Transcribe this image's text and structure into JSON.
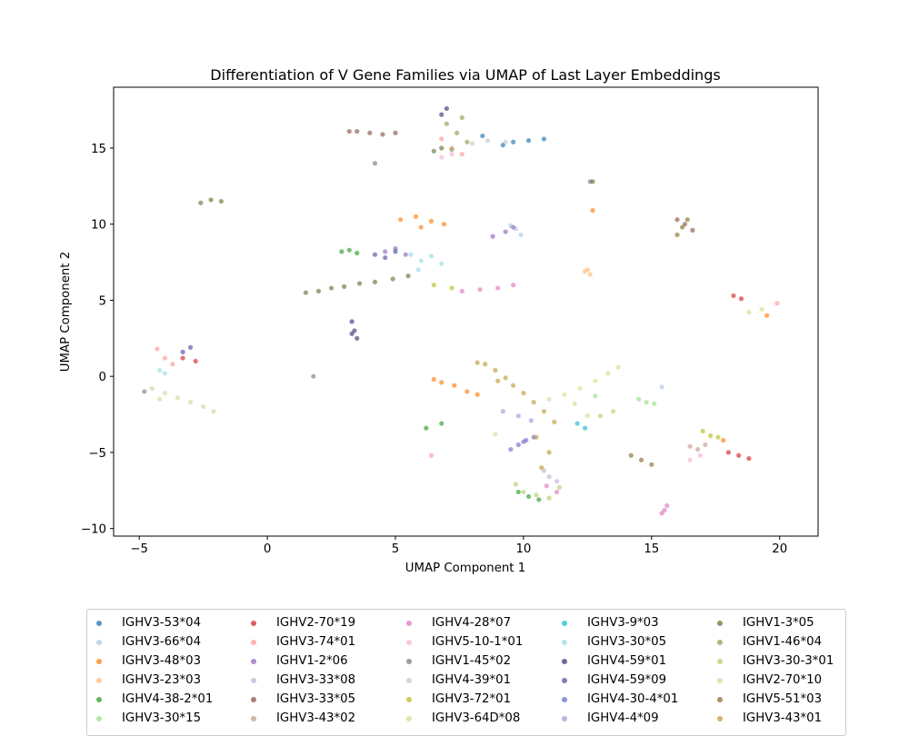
{
  "chart_data": {
    "type": "scatter",
    "title": "Differentiation of V Gene Families via UMAP of Last Layer Embeddings",
    "xlabel": "UMAP Component 1",
    "ylabel": "UMAP Component 2",
    "xlim": [
      -6.0,
      21.5
    ],
    "ylim": [
      -10.5,
      19.0
    ],
    "xticks": [
      -5,
      0,
      5,
      10,
      15,
      20
    ],
    "yticks": [
      -10,
      -5,
      0,
      5,
      10,
      15
    ],
    "grid": false,
    "legend_position": "bottom",
    "legend_columns": 5,
    "series": [
      {
        "name": "IGHV3-53*04",
        "color": "#1f77b4",
        "x": [
          9.6,
          10.2,
          10.8,
          9.2,
          8.4
        ],
        "y": [
          15.4,
          15.5,
          15.6,
          15.2,
          15.8
        ]
      },
      {
        "name": "IGHV3-66*04",
        "color": "#aec7e8",
        "x": [
          9.7,
          9.9,
          9.5,
          15.4
        ],
        "y": [
          9.7,
          9.3,
          9.9,
          -0.7
        ]
      },
      {
        "name": "IGHV3-48*03",
        "color": "#ff7f0e",
        "x": [
          5.2,
          5.8,
          6.4,
          6.9,
          6.0,
          6.8,
          7.3,
          7.8,
          6.5,
          8.2,
          19.5,
          12.7,
          17.8
        ],
        "y": [
          10.3,
          10.5,
          10.2,
          10.0,
          9.8,
          -0.4,
          -0.6,
          -1.0,
          -0.2,
          -1.2,
          4.0,
          10.9,
          -4.2
        ]
      },
      {
        "name": "IGHV3-23*03",
        "color": "#ffbb78",
        "x": [
          12.4,
          12.6,
          12.5
        ],
        "y": [
          6.9,
          6.7,
          7.0
        ]
      },
      {
        "name": "IGHV4-38-2*01",
        "color": "#2ca02c",
        "x": [
          2.9,
          3.2,
          3.5,
          6.2,
          6.8,
          10.2,
          10.6,
          9.8
        ],
        "y": [
          8.2,
          8.3,
          8.1,
          -3.4,
          -3.1,
          -7.9,
          -8.1,
          -7.6
        ]
      },
      {
        "name": "IGHV3-30*15",
        "color": "#98df8a",
        "x": [
          14.5,
          14.8,
          15.1,
          12.8
        ],
        "y": [
          -1.5,
          -1.7,
          -1.8,
          -1.3
        ]
      },
      {
        "name": "IGHV2-70*19",
        "color": "#d62728",
        "x": [
          18.0,
          18.4,
          18.8,
          18.2,
          18.5,
          -3.3,
          -2.8
        ],
        "y": [
          -5.0,
          -5.2,
          -5.4,
          5.3,
          5.1,
          1.2,
          1.0
        ]
      },
      {
        "name": "IGHV3-74*01",
        "color": "#ff9896",
        "x": [
          -4.3,
          -4.0,
          -3.7,
          7.2,
          6.8,
          7.6,
          6.4,
          19.9
        ],
        "y": [
          1.8,
          1.2,
          0.8,
          15.0,
          15.6,
          14.6,
          -5.2,
          4.8
        ]
      },
      {
        "name": "IGHV1-2*06",
        "color": "#9467bd",
        "x": [
          4.6,
          5.0,
          5.4,
          8.8,
          9.3,
          9.6,
          10.0
        ],
        "y": [
          8.2,
          8.4,
          8.0,
          9.2,
          9.5,
          9.8,
          -4.3
        ]
      },
      {
        "name": "IGHV3-33*08",
        "color": "#c5b0d5",
        "x": [
          10.8,
          11.0,
          11.3
        ],
        "y": [
          -6.2,
          -6.6,
          -6.9
        ]
      },
      {
        "name": "IGHV3-33*05",
        "color": "#8c564b",
        "x": [
          3.5,
          4.0,
          4.5,
          5.0,
          3.2,
          16.0,
          16.3,
          16.6
        ],
        "y": [
          16.1,
          16.0,
          15.9,
          16.0,
          16.1,
          10.3,
          10.0,
          9.6
        ]
      },
      {
        "name": "IGHV3-43*02",
        "color": "#c49c94",
        "x": [
          16.5,
          16.8,
          17.1
        ],
        "y": [
          -4.6,
          -4.8,
          -4.5
        ]
      },
      {
        "name": "IGHV4-28*07",
        "color": "#e377c2",
        "x": [
          7.6,
          8.3,
          9.0,
          9.6,
          15.5,
          15.6,
          15.4,
          10.9,
          11.3
        ],
        "y": [
          5.6,
          5.7,
          5.8,
          6.0,
          -8.8,
          -8.5,
          -9.0,
          -7.2,
          -7.6
        ]
      },
      {
        "name": "IGHV5-10-1*01",
        "color": "#f7b6d2",
        "x": [
          6.8,
          7.2,
          16.9,
          16.5
        ],
        "y": [
          14.4,
          14.6,
          -5.2,
          -5.5
        ]
      },
      {
        "name": "IGHV1-45*02",
        "color": "#7f7f7f",
        "x": [
          4.2,
          -4.8,
          1.8,
          12.6
        ],
        "y": [
          14.0,
          -1.0,
          0.0,
          12.8
        ]
      },
      {
        "name": "IGHV4-39*01",
        "color": "#c7c7c7",
        "x": [
          8.0,
          8.6,
          9.3
        ],
        "y": [
          15.3,
          15.5,
          15.4
        ]
      },
      {
        "name": "IGHV3-72*01",
        "color": "#bcbd22",
        "x": [
          17.0,
          17.3,
          17.6,
          6.5,
          7.2
        ],
        "y": [
          -3.6,
          -3.9,
          -4.0,
          6.0,
          5.8
        ]
      },
      {
        "name": "IGHV3-64D*08",
        "color": "#dbdb8d",
        "x": [
          11.6,
          12.2,
          12.8,
          13.3,
          13.7,
          12.0,
          18.8,
          19.3
        ],
        "y": [
          -1.2,
          -0.8,
          -0.3,
          0.2,
          0.6,
          -1.8,
          4.2,
          4.4
        ]
      },
      {
        "name": "IGHV3-9*03",
        "color": "#17becf",
        "x": [
          12.4,
          12.1
        ],
        "y": [
          -3.4,
          -3.1
        ]
      },
      {
        "name": "IGHV3-30*05",
        "color": "#9edae5",
        "x": [
          5.6,
          6.0,
          6.4,
          6.8,
          5.9,
          -4.0,
          -4.2
        ],
        "y": [
          8.0,
          7.6,
          7.9,
          7.4,
          7.0,
          0.2,
          0.4
        ]
      },
      {
        "name": "IGHV4-59*01",
        "color": "#393b79",
        "x": [
          3.3,
          3.4,
          3.5,
          3.3,
          7.0,
          6.8
        ],
        "y": [
          3.6,
          3.0,
          2.5,
          2.8,
          17.6,
          17.2
        ]
      },
      {
        "name": "IGHV4-59*09",
        "color": "#5254a3",
        "x": [
          4.2,
          4.6,
          5.0,
          -3.0,
          -3.3
        ],
        "y": [
          8.0,
          7.8,
          8.2,
          1.9,
          1.6
        ]
      },
      {
        "name": "IGHV4-30-4*01",
        "color": "#6b6ecf",
        "x": [
          9.8,
          10.1,
          9.5,
          10.4
        ],
        "y": [
          -4.5,
          -4.2,
          -4.8,
          -4.0
        ]
      },
      {
        "name": "IGHV4-4*09",
        "color": "#9c9ede",
        "x": [
          9.8,
          10.3,
          9.2
        ],
        "y": [
          -2.6,
          -2.9,
          -2.3
        ]
      },
      {
        "name": "IGHV1-3*05",
        "color": "#637939",
        "x": [
          1.5,
          2.0,
          2.5,
          3.0,
          3.6,
          4.2,
          4.9,
          5.5,
          -2.6,
          -2.2,
          -1.8,
          6.5,
          6.8,
          12.7
        ],
        "y": [
          5.5,
          5.6,
          5.8,
          5.9,
          6.1,
          6.2,
          6.4,
          6.6,
          11.4,
          11.6,
          11.5,
          14.8,
          15.0,
          12.8
        ]
      },
      {
        "name": "IGHV1-46*04",
        "color": "#8ca252",
        "x": [
          7.0,
          7.4,
          7.8,
          7.2,
          7.6
        ],
        "y": [
          16.6,
          16.0,
          15.4,
          14.9,
          17.0
        ]
      },
      {
        "name": "IGHV3-30-3*01",
        "color": "#b5cf6b",
        "x": [
          10.0,
          10.5,
          11.0,
          11.4,
          9.7,
          13.5,
          13.0
        ],
        "y": [
          -7.6,
          -7.8,
          -8.0,
          -7.3,
          -7.1,
          -2.3,
          -2.6
        ]
      },
      {
        "name": "IGHV2-70*10",
        "color": "#cedb9c",
        "x": [
          -4.5,
          -4.0,
          -3.5,
          -3.0,
          -2.5,
          -2.1,
          -4.2,
          11.0,
          12.5,
          8.9
        ],
        "y": [
          -0.8,
          -1.1,
          -1.4,
          -1.7,
          -2.0,
          -2.3,
          -1.5,
          -1.5,
          -2.6,
          -3.8
        ]
      },
      {
        "name": "IGHV5-51*03",
        "color": "#8c6d31",
        "x": [
          16.2,
          16.4,
          16.0,
          14.2,
          14.6,
          15.0
        ],
        "y": [
          9.8,
          10.3,
          9.3,
          -5.2,
          -5.5,
          -5.8
        ]
      },
      {
        "name": "IGHV3-43*01",
        "color": "#bd9e39",
        "x": [
          8.5,
          8.9,
          9.3,
          9.6,
          10.0,
          10.4,
          10.8,
          11.2,
          10.5,
          11.0,
          10.7,
          8.2,
          9.0
        ],
        "y": [
          0.8,
          0.4,
          -0.1,
          -0.6,
          -1.1,
          -1.7,
          -2.3,
          -3.0,
          -4.0,
          -5.0,
          -6.0,
          0.9,
          -0.3
        ]
      }
    ]
  }
}
